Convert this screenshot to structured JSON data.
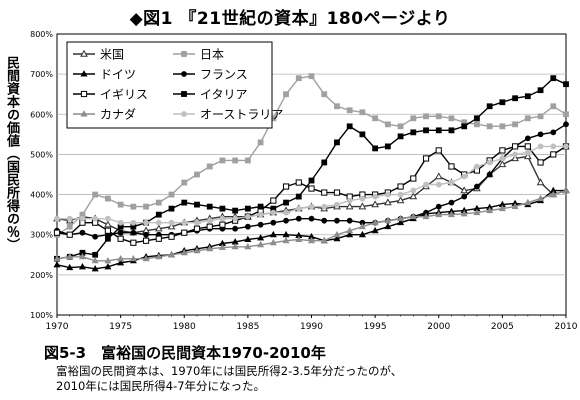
{
  "header": {
    "title": "◆図1 『21世紀の資本』180ページより"
  },
  "caption": {
    "title": "図5-3　富裕国の民間資本1970-2010年",
    "line1": "富裕国の民間資本は、1970年には国民所得2-3.5年分だったのが、",
    "line2": "2010年には国民所得4-7年分になった。"
  },
  "chart_data": {
    "type": "line",
    "title": "",
    "xlabel": "",
    "ylabel": "民間資本の価値（国民所得の％）",
    "xlim": [
      1970,
      2010
    ],
    "ylim": [
      100,
      800
    ],
    "xticks": [
      1970,
      1975,
      1980,
      1985,
      1990,
      1995,
      2000,
      2005,
      2010
    ],
    "yticks": [
      100,
      200,
      300,
      400,
      500,
      600,
      700,
      800
    ],
    "ytick_labels": [
      "100%",
      "200%",
      "300%",
      "400%",
      "500%",
      "600%",
      "700%",
      "800%"
    ],
    "grid": "horizontal",
    "legend_placement": "top-left",
    "x": [
      1970,
      1971,
      1972,
      1973,
      1974,
      1975,
      1976,
      1977,
      1978,
      1979,
      1980,
      1981,
      1982,
      1983,
      1984,
      1985,
      1986,
      1987,
      1988,
      1989,
      1990,
      1991,
      1992,
      1993,
      1994,
      1995,
      1996,
      1997,
      1998,
      1999,
      2000,
      2001,
      2002,
      2003,
      2004,
      2005,
      2006,
      2007,
      2008,
      2009,
      2010
    ],
    "series": [
      {
        "name": "米国",
        "color": "#333333",
        "marker": "triangle-open",
        "dash": "",
        "values": [
          340,
          335,
          345,
          340,
          325,
          310,
          305,
          310,
          315,
          320,
          330,
          335,
          340,
          345,
          345,
          345,
          350,
          355,
          360,
          365,
          370,
          365,
          370,
          370,
          370,
          375,
          380,
          385,
          395,
          420,
          445,
          430,
          410,
          415,
          450,
          475,
          490,
          495,
          430,
          400,
          410
        ]
      },
      {
        "name": "日本",
        "color": "#a0a0a0",
        "marker": "square",
        "dash": "",
        "values": [
          300,
          320,
          350,
          400,
          390,
          375,
          370,
          370,
          380,
          400,
          430,
          450,
          470,
          485,
          485,
          485,
          530,
          590,
          650,
          690,
          695,
          650,
          620,
          610,
          605,
          590,
          575,
          570,
          590,
          595,
          595,
          590,
          580,
          575,
          570,
          570,
          575,
          590,
          595,
          620,
          600
        ]
      },
      {
        "name": "ドイツ",
        "color": "#000000",
        "marker": "triangle",
        "dash": "",
        "values": [
          225,
          218,
          220,
          215,
          220,
          230,
          235,
          245,
          248,
          250,
          260,
          265,
          270,
          278,
          282,
          288,
          292,
          300,
          300,
          298,
          295,
          285,
          290,
          300,
          300,
          310,
          320,
          330,
          340,
          352,
          355,
          358,
          360,
          365,
          368,
          375,
          378,
          375,
          385,
          410,
          410
        ]
      },
      {
        "name": "フランス",
        "color": "#000000",
        "marker": "circle",
        "dash": "",
        "values": [
          310,
          300,
          305,
          295,
          300,
          305,
          305,
          300,
          300,
          300,
          305,
          310,
          315,
          315,
          315,
          320,
          325,
          330,
          335,
          340,
          340,
          335,
          335,
          335,
          330,
          330,
          335,
          340,
          345,
          355,
          370,
          380,
          395,
          420,
          450,
          490,
          520,
          540,
          550,
          555,
          575
        ]
      },
      {
        "name": "イギリス",
        "color": "#000000",
        "marker": "square-open",
        "dash": "",
        "values": [
          305,
          300,
          330,
          330,
          310,
          290,
          280,
          285,
          290,
          295,
          305,
          315,
          320,
          325,
          335,
          345,
          360,
          385,
          420,
          430,
          415,
          405,
          405,
          395,
          400,
          400,
          405,
          420,
          440,
          490,
          510,
          470,
          450,
          460,
          485,
          510,
          520,
          520,
          480,
          500,
          520
        ]
      },
      {
        "name": "イタリア",
        "color": "#000000",
        "marker": "square",
        "dash": "",
        "values": [
          240,
          245,
          255,
          250,
          290,
          320,
          320,
          330,
          350,
          365,
          380,
          375,
          370,
          365,
          360,
          365,
          370,
          365,
          380,
          395,
          435,
          480,
          530,
          570,
          550,
          515,
          520,
          545,
          555,
          560,
          560,
          560,
          570,
          590,
          620,
          630,
          640,
          645,
          660,
          690,
          675
        ]
      },
      {
        "name": "カナダ",
        "color": "#8c8c8c",
        "marker": "triangle",
        "dash": "",
        "values": [
          240,
          245,
          245,
          235,
          235,
          240,
          240,
          240,
          245,
          250,
          255,
          260,
          265,
          268,
          270,
          270,
          275,
          280,
          285,
          288,
          285,
          285,
          300,
          310,
          320,
          330,
          335,
          340,
          345,
          345,
          350,
          350,
          352,
          355,
          360,
          365,
          370,
          380,
          390,
          400,
          410
        ]
      },
      {
        "name": "オーストラリア",
        "color": "#c0c0c0",
        "marker": "circle",
        "dash": "",
        "values": [
          340,
          340,
          340,
          340,
          340,
          330,
          330,
          330,
          330,
          330,
          330,
          330,
          335,
          340,
          340,
          345,
          350,
          355,
          355,
          365,
          370,
          370,
          375,
          385,
          390,
          395,
          400,
          400,
          410,
          425,
          425,
          430,
          445,
          470,
          480,
          490,
          500,
          505,
          520,
          520,
          520
        ]
      }
    ]
  }
}
